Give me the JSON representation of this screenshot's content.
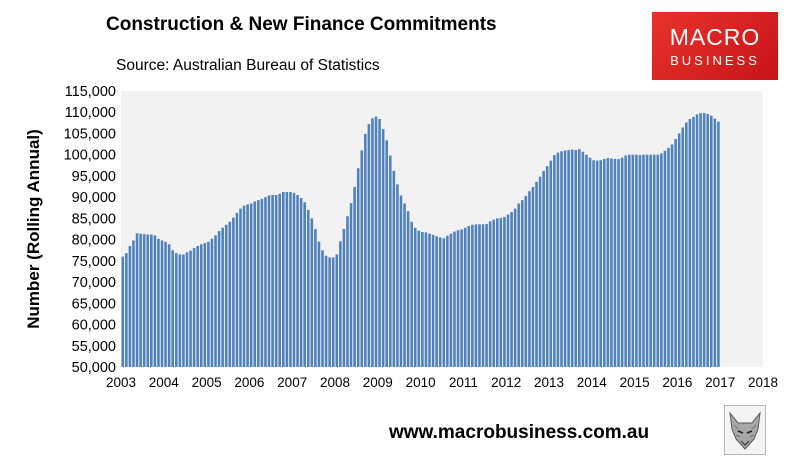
{
  "header": {
    "title": "Construction & New Finance Commitments",
    "source": "Source: Australian  Bureau of Statistics"
  },
  "logo": {
    "line1": "MACRO",
    "line2": "BUSINESS",
    "bg_color": "#d91f26"
  },
  "footer": {
    "url": "www.macrobusiness.com.au",
    "icon": "fox-head-icon"
  },
  "colors": {
    "bar": "#4f81bd",
    "plot_bg": "#f2f2f2"
  },
  "chart_data": {
    "type": "bar",
    "ylabel": "Number (Rolling Annual)",
    "ylim": [
      50000,
      115000
    ],
    "yticks": [
      "50,000",
      "55,000",
      "60,000",
      "65,000",
      "70,000",
      "75,000",
      "80,000",
      "85,000",
      "90,000",
      "95,000",
      "100,000",
      "105,000",
      "110,000",
      "115,000"
    ],
    "xticks": [
      "2003",
      "2004",
      "2005",
      "2006",
      "2007",
      "2008",
      "2009",
      "2010",
      "2011",
      "2012",
      "2013",
      "2014",
      "2015",
      "2016",
      "2017",
      "2018"
    ],
    "grid": false,
    "start": "2003-01",
    "frequency": "monthly",
    "values": [
      76000,
      76800,
      78500,
      79800,
      81500,
      81400,
      81300,
      81200,
      81200,
      81000,
      80200,
      79800,
      79500,
      78900,
      77500,
      76800,
      76500,
      76500,
      77000,
      77400,
      78000,
      78500,
      78900,
      79200,
      79500,
      80200,
      81000,
      82000,
      82800,
      83500,
      84200,
      85200,
      86300,
      87300,
      88000,
      88300,
      88500,
      89000,
      89300,
      89600,
      90000,
      90400,
      90500,
      90500,
      90800,
      91200,
      91200,
      91200,
      91000,
      90500,
      89800,
      88800,
      87000,
      85000,
      82500,
      79500,
      77500,
      76200,
      75800,
      75800,
      76500,
      79600,
      82500,
      85500,
      88600,
      92400,
      96800,
      101000,
      104900,
      107200,
      108600,
      109000,
      108400,
      106000,
      103400,
      99800,
      96200,
      93000,
      90400,
      88500,
      86700,
      84200,
      82800,
      82100,
      81800,
      81700,
      81400,
      81100,
      80800,
      80500,
      80300,
      80900,
      81400,
      81900,
      82200,
      82400,
      82800,
      83200,
      83500,
      83600,
      83600,
      83600,
      83700,
      84300,
      84700,
      85000,
      85100,
      85300,
      85900,
      86500,
      87300,
      88500,
      89300,
      90300,
      91400,
      92400,
      93600,
      94800,
      96200,
      97300,
      98600,
      99900,
      100500,
      100800,
      101000,
      101100,
      101200,
      101100,
      101300,
      100700,
      100000,
      99300,
      98700,
      98600,
      98700,
      99000,
      99200,
      99100,
      99000,
      99000,
      99300,
      99800,
      100000,
      100000,
      100000,
      99900,
      100000,
      100000,
      100000,
      100000,
      100000,
      100300,
      100900,
      101600,
      102400,
      103700,
      105000,
      106400,
      107600,
      108400,
      108900,
      109500,
      109800,
      109800,
      109600,
      109200,
      108500,
      107800
    ]
  }
}
